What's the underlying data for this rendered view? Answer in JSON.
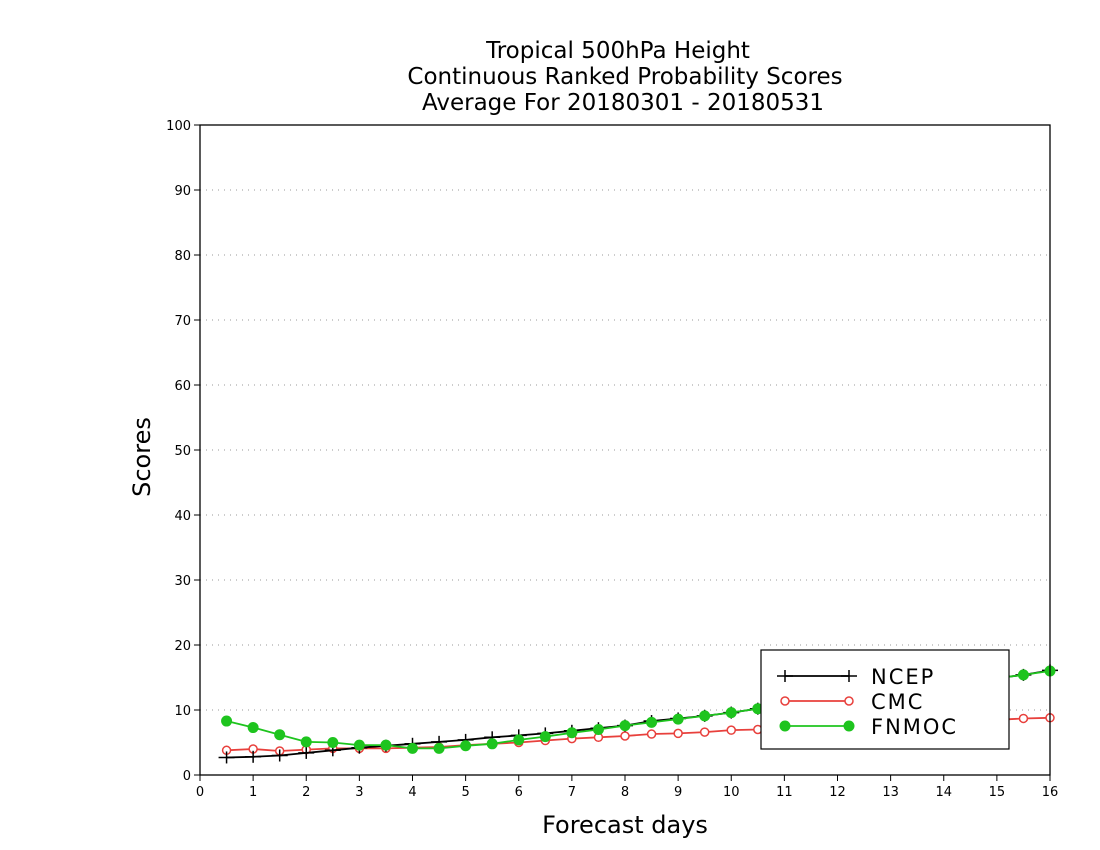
{
  "chart_data": {
    "type": "line",
    "title": [
      "Tropical 500hPa Height",
      "Continuous Ranked Probability Scores",
      "Average For 20180301 - 20180531"
    ],
    "xlabel": "Forecast days",
    "ylabel": "Scores",
    "xlim": [
      0,
      16
    ],
    "ylim": [
      0,
      100
    ],
    "xticks": [
      0,
      1,
      2,
      3,
      4,
      5,
      6,
      7,
      8,
      9,
      10,
      11,
      12,
      13,
      14,
      15,
      16
    ],
    "yticks": [
      0,
      10,
      20,
      30,
      40,
      50,
      60,
      70,
      80,
      90,
      100
    ],
    "grid": "horizontal dotted",
    "legend_position": "bottom-right",
    "series": [
      {
        "name": "NCEP",
        "color": "#000000",
        "marker": "plus",
        "x": [
          0.5,
          1,
          1.5,
          2,
          2.5,
          3,
          3.5,
          4,
          4.5,
          5,
          5.5,
          6,
          6.5,
          7,
          7.5,
          8,
          8.5,
          9,
          9.5,
          10,
          10.5,
          11,
          11.5,
          12,
          12.5,
          13,
          13.5,
          14,
          14.5,
          15,
          15.5,
          16
        ],
        "y": [
          2.7,
          2.8,
          3.0,
          3.4,
          3.8,
          4.2,
          4.5,
          4.8,
          5.1,
          5.4,
          5.8,
          6.1,
          6.4,
          6.8,
          7.2,
          7.6,
          8.3,
          8.7,
          9.1,
          9.6,
          10.2,
          10.7,
          11.2,
          11.7,
          12.3,
          12.8,
          13.3,
          13.8,
          14.4,
          14.9,
          15.4,
          16.1
        ]
      },
      {
        "name": "CMC",
        "color": "#e8403c",
        "marker": "open-circle",
        "x": [
          0.5,
          1,
          1.5,
          2,
          2.5,
          3,
          3.5,
          4,
          4.5,
          5,
          5.5,
          6,
          6.5,
          7,
          7.5,
          8,
          8.5,
          9,
          9.5,
          10,
          10.5,
          11,
          11.5,
          12,
          12.5,
          13,
          13.5,
          14,
          14.5,
          15,
          15.5,
          16
        ],
        "y": [
          3.8,
          4.0,
          3.7,
          3.9,
          4.1,
          4.1,
          4.1,
          4.2,
          4.3,
          4.6,
          4.8,
          5.0,
          5.3,
          5.6,
          5.8,
          6.0,
          6.3,
          6.4,
          6.6,
          6.9,
          7.0,
          7.1,
          7.3,
          7.5,
          7.7,
          7.8,
          8.0,
          8.2,
          8.4,
          8.5,
          8.7,
          8.8
        ]
      },
      {
        "name": "FNMOC",
        "color": "#1ec41e",
        "marker": "filled-circle",
        "x": [
          0.5,
          1,
          1.5,
          2,
          2.5,
          3,
          3.5,
          4,
          4.5,
          5,
          5.5,
          6,
          6.5,
          7,
          7.5,
          8,
          8.5,
          9,
          9.5,
          10,
          10.5,
          11,
          11.5,
          12,
          12.5,
          13,
          13.5,
          14,
          14.5,
          15,
          15.5,
          16
        ],
        "y": [
          8.3,
          7.3,
          6.2,
          5.1,
          5.0,
          4.6,
          4.6,
          4.1,
          4.1,
          4.5,
          4.8,
          5.4,
          5.9,
          6.5,
          7.0,
          7.6,
          8.1,
          8.6,
          9.1,
          9.6,
          10.2,
          10.7,
          11.2,
          11.7,
          12.3,
          12.8,
          13.3,
          13.8,
          14.4,
          14.9,
          15.4,
          16.0
        ]
      }
    ]
  }
}
